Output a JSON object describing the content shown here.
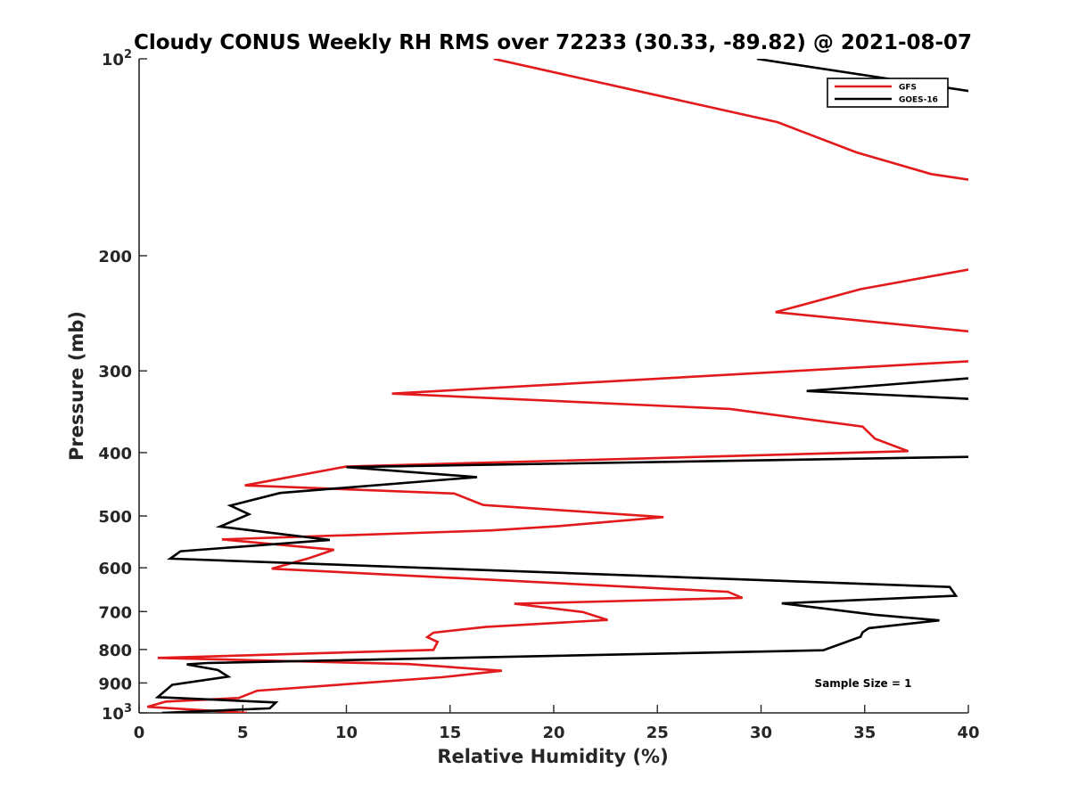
{
  "chart_data": {
    "type": "line",
    "title": "Cloudy CONUS Weekly RH RMS over 72233 (30.33, -89.82) @ 2021-08-07",
    "xlabel": "Relative Humidity (%)",
    "ylabel": "Pressure (mb)",
    "xlim": [
      0,
      40
    ],
    "ylim": [
      100,
      1000
    ],
    "y_scale": "log",
    "y_reversed": true,
    "x_ticks": [
      0,
      5,
      10,
      15,
      20,
      25,
      30,
      35,
      40
    ],
    "x_tick_labels": [
      "0",
      "5",
      "10",
      "15",
      "20",
      "25",
      "30",
      "35",
      "40"
    ],
    "y_ticks": [
      100,
      200,
      300,
      400,
      500,
      600,
      700,
      800,
      900,
      1000
    ],
    "y_tick_labels": [
      {
        "base": "10",
        "exp": "2"
      },
      {
        "base": "200"
      },
      {
        "base": "300"
      },
      {
        "base": "400"
      },
      {
        "base": "500"
      },
      {
        "base": "600"
      },
      {
        "base": "700"
      },
      {
        "base": "800"
      },
      {
        "base": "900"
      },
      {
        "base": "10",
        "exp": "3"
      }
    ],
    "legend_position": "top-right",
    "annotation": "Sample Size = 1",
    "series": [
      {
        "name": "GFS",
        "color": "#e31a1c",
        "points": [
          [
            17.1,
            100
          ],
          [
            30.8,
            125
          ],
          [
            34.6,
            139
          ],
          [
            38.2,
            150
          ],
          [
            40,
            153
          ],
          [
            null,
            null
          ],
          [
            40,
            210
          ],
          [
            34.8,
            225
          ],
          [
            30.7,
            244
          ],
          [
            40,
            261
          ],
          [
            null,
            null
          ],
          [
            40,
            290
          ],
          [
            12.2,
            325
          ],
          [
            28.5,
            343
          ],
          [
            34.9,
            365
          ],
          [
            35.5,
            381
          ],
          [
            37.1,
            398
          ],
          [
            10.0,
            420
          ],
          [
            5.1,
            449
          ],
          [
            15.2,
            462
          ],
          [
            16.6,
            481
          ],
          [
            25.3,
            502
          ],
          [
            20.3,
            518
          ],
          [
            17.0,
            526
          ],
          [
            4.0,
            543
          ],
          [
            9.4,
            563
          ],
          [
            8.2,
            580
          ],
          [
            6.4,
            602
          ],
          [
            28.4,
            653
          ],
          [
            29.1,
            667
          ],
          [
            18.1,
            681
          ],
          [
            21.4,
            701
          ],
          [
            22.6,
            721
          ],
          [
            16.7,
            739
          ],
          [
            14.2,
            754
          ],
          [
            13.9,
            766
          ],
          [
            14.4,
            779
          ],
          [
            14.2,
            801
          ],
          [
            0.9,
            824
          ],
          [
            13.0,
            842
          ],
          [
            17.5,
            862
          ],
          [
            14.6,
            882
          ],
          [
            5.7,
            925
          ],
          [
            4.8,
            949
          ],
          [
            1.3,
            961
          ],
          [
            0.4,
            979
          ],
          [
            5.2,
            1000
          ]
        ]
      },
      {
        "name": "GOES-16",
        "color": "#000000",
        "points": [
          [
            29.8,
            100
          ],
          [
            40,
            112
          ],
          [
            null,
            null
          ],
          [
            40,
            308
          ],
          [
            32.2,
            322
          ],
          [
            40,
            331
          ],
          [
            null,
            null
          ],
          [
            40,
            406
          ],
          [
            10.0,
            421
          ],
          [
            16.3,
            436
          ],
          [
            6.8,
            461
          ],
          [
            4.4,
            482
          ],
          [
            5.3,
            497
          ],
          [
            3.9,
            519
          ],
          [
            9.2,
            544
          ],
          [
            2.0,
            566
          ],
          [
            1.5,
            581
          ],
          [
            39.1,
            642
          ],
          [
            39.4,
            662
          ],
          [
            31.0,
            680
          ],
          [
            35.5,
            708
          ],
          [
            38.6,
            722
          ],
          [
            35.2,
            742
          ],
          [
            34.9,
            753
          ],
          [
            34.8,
            765
          ],
          [
            33.0,
            802
          ],
          [
            3.3,
            839
          ],
          [
            2.3,
            843
          ],
          [
            3.8,
            860
          ],
          [
            4.3,
            880
          ],
          [
            1.6,
            906
          ],
          [
            0.9,
            946
          ],
          [
            6.6,
            964
          ],
          [
            6.3,
            984
          ],
          [
            1.1,
            1000
          ]
        ]
      }
    ]
  }
}
